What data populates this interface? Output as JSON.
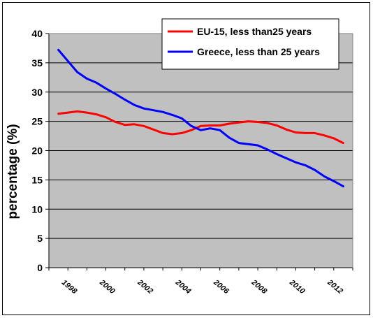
{
  "chart_data": {
    "type": "line",
    "ylabel": "percentage (%)",
    "ylim": [
      0,
      40
    ],
    "yticks": [
      "0",
      "5",
      "10",
      "15",
      "20",
      "25",
      "30",
      "35",
      "40"
    ],
    "x_tick_labels": [
      "1998",
      "2000",
      "2002",
      "2004",
      "2006",
      "2008",
      "2010",
      "2012"
    ],
    "x_tick_values": [
      1998,
      2000,
      2002,
      2004,
      2006,
      2008,
      2010,
      2012
    ],
    "xlim": [
      1997.0,
      2013.0
    ],
    "grid": true,
    "legend_position": "top-right",
    "series": [
      {
        "name": "EU-15, less than25 years",
        "color": "#ff0000",
        "x": [
          1997.5,
          1998.0,
          1998.5,
          1999.0,
          1999.5,
          2000.0,
          2000.5,
          2001.0,
          2001.5,
          2002.0,
          2002.5,
          2003.0,
          2003.5,
          2004.0,
          2004.5,
          2005.0,
          2005.5,
          2006.0,
          2006.5,
          2007.0,
          2007.5,
          2008.0,
          2008.5,
          2009.0,
          2009.5,
          2010.0,
          2010.5,
          2011.0,
          2011.5,
          2012.0,
          2012.5
        ],
        "values": [
          26.3,
          26.5,
          26.7,
          26.5,
          26.2,
          25.7,
          24.9,
          24.4,
          24.5,
          24.2,
          23.6,
          23.0,
          22.8,
          23.0,
          23.5,
          24.2,
          24.3,
          24.3,
          24.6,
          24.8,
          25.0,
          24.9,
          24.7,
          24.3,
          23.6,
          23.1,
          23.0,
          23.0,
          22.6,
          22.1,
          21.3
        ],
        "print_values": false
      },
      {
        "name": "Greece, less than 25 years",
        "color": "#0000ff",
        "x": [
          1997.5,
          1998.0,
          1998.5,
          1999.0,
          1999.5,
          2000.0,
          2000.5,
          2001.0,
          2001.5,
          2002.0,
          2002.5,
          2003.0,
          2003.5,
          2004.0,
          2004.5,
          2005.0,
          2005.5,
          2006.0,
          2006.5,
          2007.0,
          2007.5,
          2008.0,
          2008.5,
          2009.0,
          2009.5,
          2010.0,
          2010.5,
          2011.0,
          2011.5,
          2012.0,
          2012.5
        ],
        "values": [
          37.2,
          35.3,
          33.4,
          32.3,
          31.6,
          30.6,
          29.7,
          28.7,
          27.8,
          27.2,
          26.9,
          26.6,
          26.1,
          25.5,
          24.2,
          23.5,
          23.8,
          23.5,
          22.2,
          21.3,
          21.1,
          20.9,
          20.2,
          19.4,
          18.7,
          18.0,
          17.5,
          16.7,
          15.6,
          14.8,
          13.9
        ],
        "print_values": false
      }
    ]
  }
}
